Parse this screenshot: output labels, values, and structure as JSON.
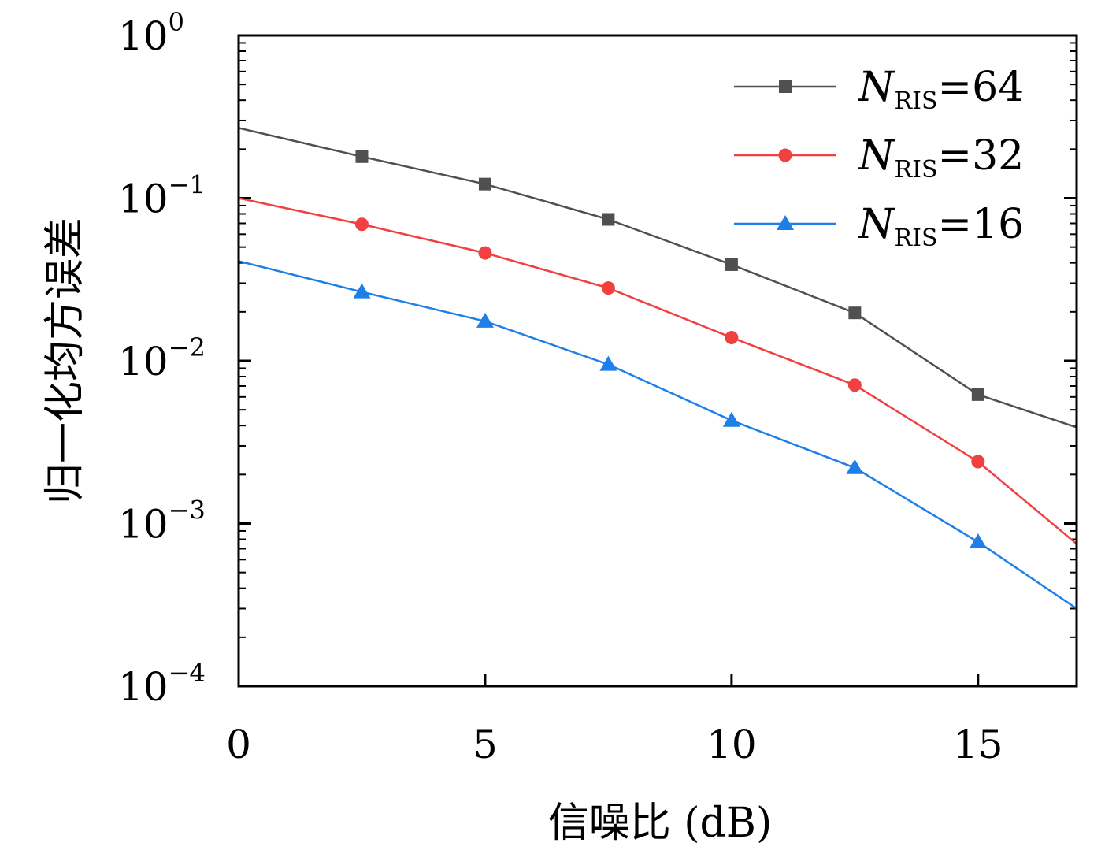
{
  "chart_data": {
    "type": "line",
    "title": "",
    "xlabel": "信噪比 (dB)",
    "ylabel": "归一化均方误差",
    "xlim": [
      0,
      17
    ],
    "ylim": [
      0.0001,
      1
    ],
    "yscale": "log",
    "grid": false,
    "legend_position": "top-right",
    "x_ticks": [
      "0",
      "5",
      "10",
      "15"
    ],
    "x_tick_values": [
      0,
      5,
      10,
      15
    ],
    "y_ticks": [
      {
        "base": "10",
        "exp": "0",
        "value": 1
      },
      {
        "base": "10",
        "exp": "−1",
        "value": 0.1
      },
      {
        "base": "10",
        "exp": "−2",
        "value": 0.01
      },
      {
        "base": "10",
        "exp": "−3",
        "value": 0.001
      },
      {
        "base": "10",
        "exp": "−4",
        "value": 0.0001
      }
    ],
    "series": [
      {
        "name": "N_RIS=64",
        "legend": {
          "var": "N",
          "sub": "RIS",
          "rest": "=64"
        },
        "color": "#505050",
        "marker": "square",
        "x": [
          0,
          2.5,
          5,
          7.5,
          10,
          12.5,
          15,
          17
        ],
        "values": [
          0.27,
          0.18,
          0.122,
          0.074,
          0.039,
          0.0197,
          0.0062,
          0.0039
        ]
      },
      {
        "name": "N_RIS=32",
        "legend": {
          "var": "N",
          "sub": "RIS",
          "rest": "=32"
        },
        "color": "#f0403f",
        "marker": "circle",
        "x": [
          0,
          2.5,
          5,
          7.5,
          10,
          12.5,
          15,
          17
        ],
        "values": [
          0.1,
          0.069,
          0.046,
          0.028,
          0.0139,
          0.0071,
          0.0024,
          0.00075
        ]
      },
      {
        "name": "N_RIS=16",
        "legend": {
          "var": "N",
          "sub": "RIS",
          "rest": "=16"
        },
        "color": "#1f7fe8",
        "marker": "triangle",
        "x": [
          0,
          2.5,
          5,
          7.5,
          10,
          12.5,
          15,
          17
        ],
        "values": [
          0.041,
          0.0265,
          0.0175,
          0.0095,
          0.0043,
          0.0022,
          0.00077,
          0.0003
        ]
      }
    ]
  }
}
